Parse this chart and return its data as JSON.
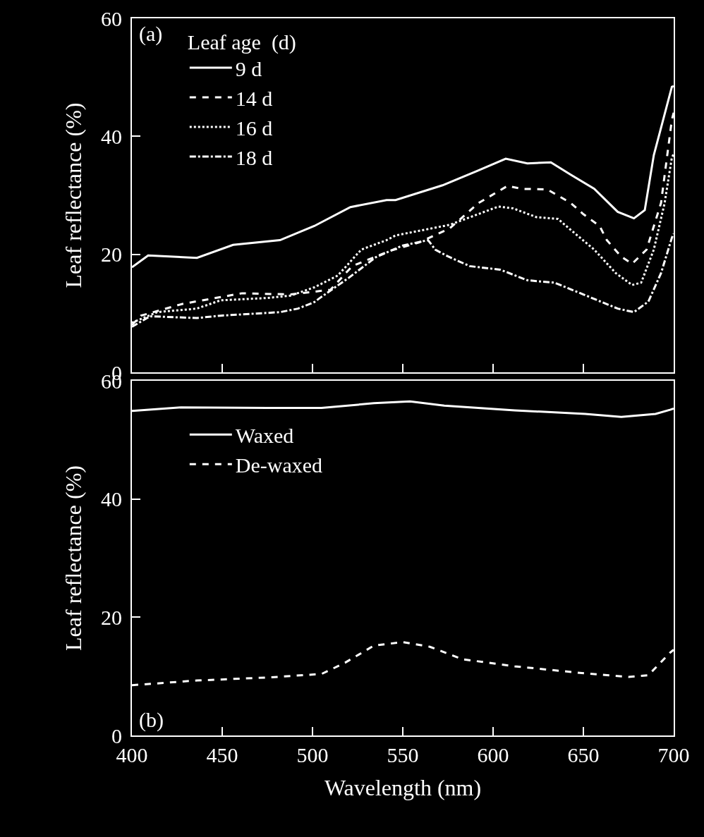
{
  "chart_data": [
    {
      "type": "line",
      "ylabel": "Leaf reflectance (%)",
      "legend_title": "Leaf age  (d)",
      "annotations": [
        "(a)"
      ],
      "xlim": [
        400,
        700
      ],
      "xticks": [
        400,
        450,
        500,
        550,
        600,
        650,
        700
      ],
      "ylim": [
        0,
        60
      ],
      "yticks": [
        0,
        20,
        40,
        60
      ],
      "tick_labels": "y",
      "legend": "top left",
      "grid": false,
      "marker": "none",
      "series": [
        {
          "name": "9 d",
          "color": "#ffffff",
          "line_style": "solid",
          "x": [
            400,
            409,
            436,
            456,
            482,
            501,
            521,
            541,
            546,
            572,
            591,
            607,
            619,
            632,
            643,
            656,
            669,
            678,
            684,
            689,
            699,
            700
          ],
          "values": [
            17.8,
            19.8,
            19.4,
            21.6,
            22.4,
            24.8,
            28,
            29.2,
            29.2,
            31.7,
            34.1,
            36.2,
            35.4,
            35.6,
            33.5,
            31.1,
            27.2,
            26.1,
            27.5,
            36.8,
            48.4,
            48.5
          ]
        },
        {
          "name": "14 d",
          "color": "#ffffff",
          "line_style": "dashed",
          "x": [
            400,
            405,
            428,
            461,
            488,
            510,
            522,
            543,
            559,
            576,
            592,
            608,
            616,
            630,
            643,
            650,
            659,
            663,
            671,
            677,
            685,
            693,
            699,
            700
          ],
          "values": [
            8,
            9.6,
            11.6,
            13.4,
            13.2,
            14,
            18,
            20.6,
            22,
            24.4,
            28.7,
            31.6,
            31.1,
            31,
            28.7,
            26.8,
            24.8,
            22.4,
            19.6,
            18.4,
            20.8,
            28.7,
            42.8,
            44
          ]
        },
        {
          "name": "16 d",
          "color": "#ffffff",
          "line_style": "dotted",
          "x": [
            400,
            414,
            436,
            449,
            475,
            488,
            501,
            514,
            527,
            541,
            546,
            576,
            603,
            611,
            624,
            636,
            642,
            656,
            668,
            677,
            682,
            689,
            695,
            699,
            700
          ],
          "values": [
            8.4,
            10.2,
            10.8,
            12.2,
            12.6,
            13,
            14.4,
            16.4,
            20.8,
            22.4,
            23.2,
            25,
            28.1,
            27.8,
            26.3,
            26,
            24.4,
            20.8,
            16.8,
            14.8,
            15.2,
            20.8,
            28.7,
            36.4,
            37
          ]
        },
        {
          "name": "18 d",
          "color": "#ffffff",
          "line_style": "dashdot",
          "x": [
            400,
            410,
            436,
            449,
            482,
            492,
            501,
            505,
            520,
            535,
            550,
            564,
            568,
            574,
            587,
            604,
            619,
            634,
            650,
            669,
            678,
            686,
            693,
            699,
            700
          ],
          "values": [
            7.7,
            9.5,
            9.2,
            9.6,
            10.2,
            10.8,
            11.9,
            12.8,
            16,
            19.5,
            21.5,
            22.4,
            20.8,
            19.8,
            18,
            17.4,
            15.6,
            15.2,
            13.2,
            10.8,
            10.2,
            12,
            16.8,
            22.8,
            23.5
          ]
        }
      ]
    },
    {
      "type": "line",
      "xlabel": "Wavelength (nm)",
      "ylabel": "Leaf reflectance (%)",
      "annotations": [
        "(b)"
      ],
      "xlim": [
        400,
        700
      ],
      "xticks": [
        400,
        450,
        500,
        550,
        600,
        650,
        700
      ],
      "ylim": [
        0,
        60
      ],
      "yticks": [
        0,
        20,
        40,
        60
      ],
      "legend": "top left",
      "grid": false,
      "marker": "none",
      "series": [
        {
          "name": "Waxed",
          "color": "#ffffff",
          "line_style": "solid",
          "x": [
            400,
            427,
            475,
            505,
            534,
            554,
            573,
            612,
            651,
            671,
            690,
            698,
            700
          ],
          "values": [
            54.9,
            55.5,
            55.4,
            55.4,
            56.2,
            56.5,
            55.8,
            55,
            54.4,
            53.9,
            54.4,
            55.1,
            55.3
          ]
        },
        {
          "name": "De-waxed",
          "color": "#ffffff",
          "line_style": "dashed",
          "x": [
            400,
            436,
            475,
            505,
            518,
            534,
            550,
            565,
            583,
            612,
            651,
            675,
            686,
            698,
            700
          ],
          "values": [
            8.5,
            9.3,
            9.8,
            10.4,
            12.3,
            15.2,
            15.8,
            15,
            12.9,
            11.7,
            10.5,
            9.9,
            10.2,
            14,
            14.5
          ]
        }
      ]
    }
  ]
}
